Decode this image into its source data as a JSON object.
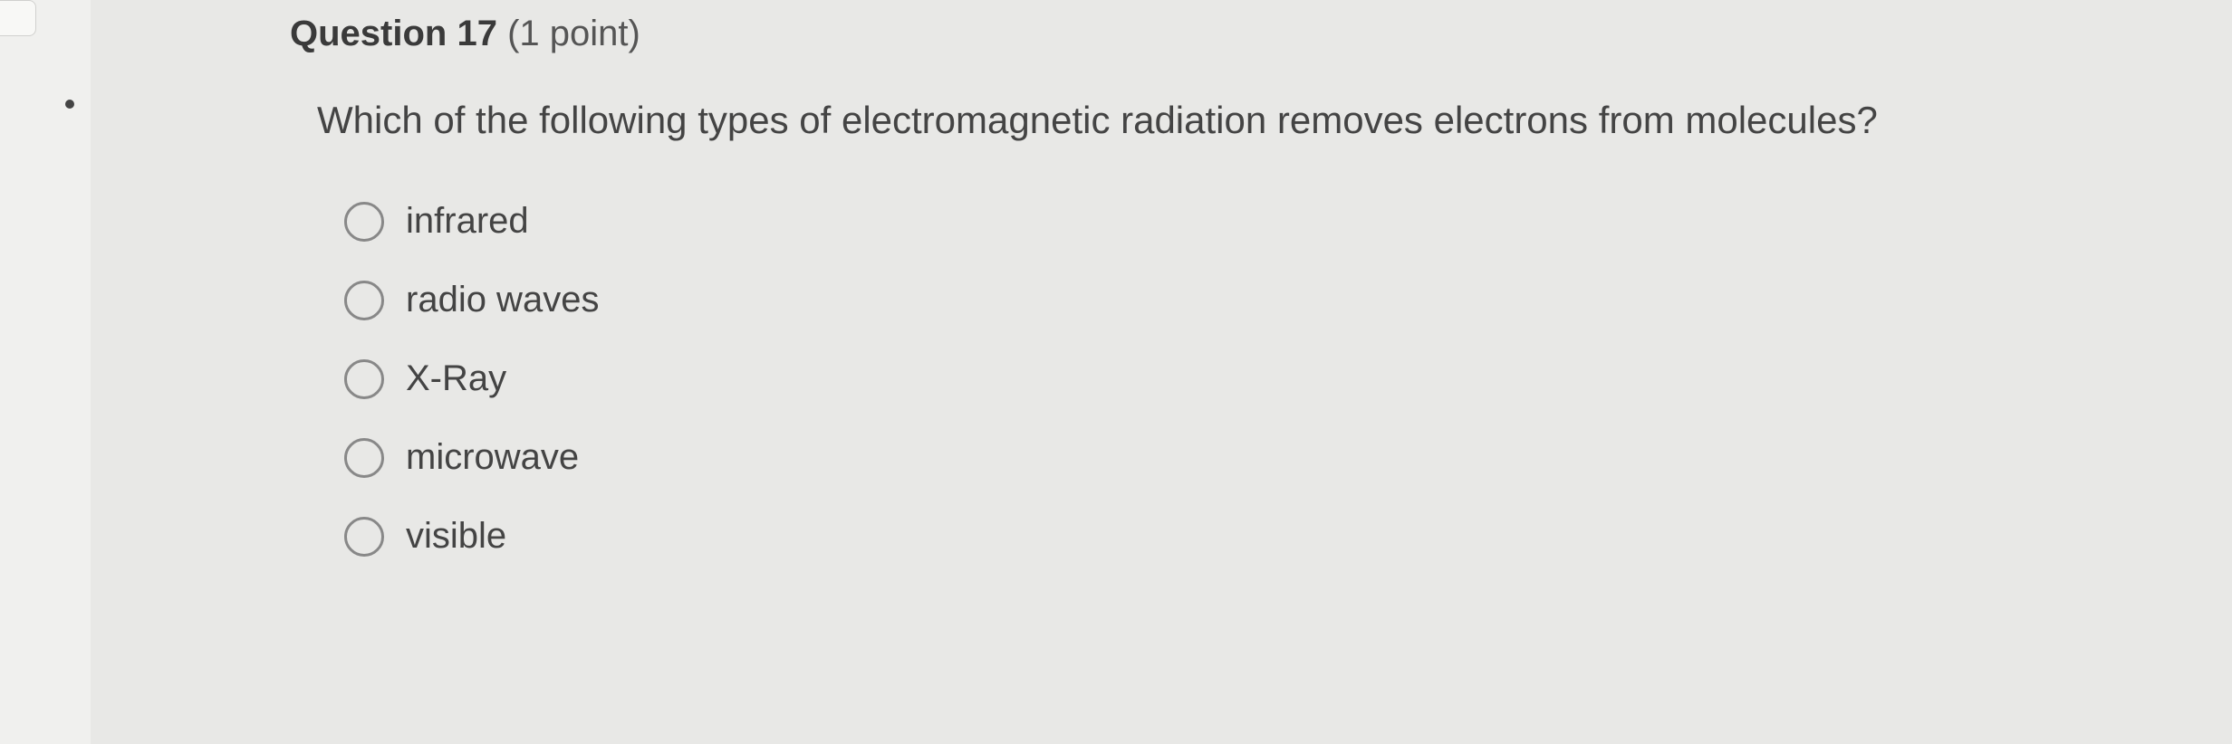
{
  "question": {
    "number_label": "Question 17",
    "points_label": "(1 point)",
    "text": "Which of the following types of electromagnetic radiation removes electrons from molecules?",
    "options": [
      "infrared",
      "radio waves",
      "X-Ray",
      "microwave",
      "visible"
    ]
  }
}
